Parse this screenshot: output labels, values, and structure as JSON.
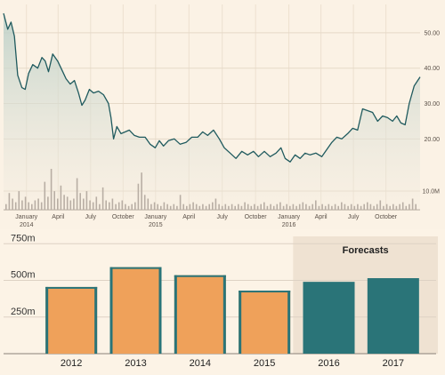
{
  "chart_data": [
    {
      "type": "line",
      "y_ticks": [
        "50.00",
        "40.00",
        "30.00",
        "20.00"
      ],
      "y_tick_values": [
        50,
        40,
        30,
        20
      ],
      "volume_tick": "10.0M",
      "ylim": [
        0,
        58
      ],
      "x_ticks": [
        {
          "label": "January",
          "year": "2014",
          "t": 0.055
        },
        {
          "label": "April",
          "year": "",
          "t": 0.131
        },
        {
          "label": "July",
          "year": "",
          "t": 0.209
        },
        {
          "label": "October",
          "year": "",
          "t": 0.287
        },
        {
          "label": "January",
          "year": "2015",
          "t": 0.365
        },
        {
          "label": "April",
          "year": "",
          "t": 0.445
        },
        {
          "label": "July",
          "year": "",
          "t": 0.525
        },
        {
          "label": "October",
          "year": "",
          "t": 0.605
        },
        {
          "label": "January",
          "year": "2016",
          "t": 0.685
        },
        {
          "label": "April",
          "year": "",
          "t": 0.762
        },
        {
          "label": "July",
          "year": "",
          "t": 0.84
        },
        {
          "label": "October",
          "year": "",
          "t": 0.918
        }
      ],
      "price": [
        {
          "t": 0.0,
          "v": 55.5
        },
        {
          "t": 0.01,
          "v": 51.0
        },
        {
          "t": 0.018,
          "v": 53.0
        },
        {
          "t": 0.026,
          "v": 49.0
        },
        {
          "t": 0.034,
          "v": 38.0
        },
        {
          "t": 0.044,
          "v": 34.5
        },
        {
          "t": 0.052,
          "v": 34.0
        },
        {
          "t": 0.06,
          "v": 38.5
        },
        {
          "t": 0.07,
          "v": 41.0
        },
        {
          "t": 0.082,
          "v": 40.0
        },
        {
          "t": 0.092,
          "v": 43.0
        },
        {
          "t": 0.1,
          "v": 42.0
        },
        {
          "t": 0.108,
          "v": 39.0
        },
        {
          "t": 0.118,
          "v": 44.0
        },
        {
          "t": 0.13,
          "v": 42.0
        },
        {
          "t": 0.142,
          "v": 39.0
        },
        {
          "t": 0.15,
          "v": 37.0
        },
        {
          "t": 0.16,
          "v": 35.5
        },
        {
          "t": 0.17,
          "v": 36.5
        },
        {
          "t": 0.18,
          "v": 33.0
        },
        {
          "t": 0.188,
          "v": 29.5
        },
        {
          "t": 0.196,
          "v": 31.0
        },
        {
          "t": 0.206,
          "v": 34.0
        },
        {
          "t": 0.216,
          "v": 33.0
        },
        {
          "t": 0.228,
          "v": 33.5
        },
        {
          "t": 0.24,
          "v": 32.5
        },
        {
          "t": 0.252,
          "v": 30.0
        },
        {
          "t": 0.258,
          "v": 26.0
        },
        {
          "t": 0.264,
          "v": 20.0
        },
        {
          "t": 0.272,
          "v": 23.5
        },
        {
          "t": 0.282,
          "v": 21.5
        },
        {
          "t": 0.292,
          "v": 22.0
        },
        {
          "t": 0.302,
          "v": 22.5
        },
        {
          "t": 0.314,
          "v": 21.0
        },
        {
          "t": 0.326,
          "v": 20.5
        },
        {
          "t": 0.34,
          "v": 20.5
        },
        {
          "t": 0.352,
          "v": 18.5
        },
        {
          "t": 0.364,
          "v": 17.5
        },
        {
          "t": 0.374,
          "v": 19.5
        },
        {
          "t": 0.384,
          "v": 18.0
        },
        {
          "t": 0.396,
          "v": 19.5
        },
        {
          "t": 0.41,
          "v": 20.0
        },
        {
          "t": 0.424,
          "v": 18.5
        },
        {
          "t": 0.438,
          "v": 19.0
        },
        {
          "t": 0.452,
          "v": 20.5
        },
        {
          "t": 0.466,
          "v": 20.5
        },
        {
          "t": 0.478,
          "v": 22.0
        },
        {
          "t": 0.49,
          "v": 21.0
        },
        {
          "t": 0.504,
          "v": 22.5
        },
        {
          "t": 0.518,
          "v": 20.0
        },
        {
          "t": 0.53,
          "v": 17.5
        },
        {
          "t": 0.544,
          "v": 16.0
        },
        {
          "t": 0.558,
          "v": 14.5
        },
        {
          "t": 0.572,
          "v": 16.5
        },
        {
          "t": 0.586,
          "v": 15.5
        },
        {
          "t": 0.6,
          "v": 16.5
        },
        {
          "t": 0.612,
          "v": 15.0
        },
        {
          "t": 0.626,
          "v": 16.5
        },
        {
          "t": 0.64,
          "v": 15.0
        },
        {
          "t": 0.654,
          "v": 16.0
        },
        {
          "t": 0.666,
          "v": 17.5
        },
        {
          "t": 0.676,
          "v": 14.5
        },
        {
          "t": 0.688,
          "v": 13.5
        },
        {
          "t": 0.7,
          "v": 15.5
        },
        {
          "t": 0.712,
          "v": 14.5
        },
        {
          "t": 0.724,
          "v": 16.0
        },
        {
          "t": 0.736,
          "v": 15.5
        },
        {
          "t": 0.75,
          "v": 16.0
        },
        {
          "t": 0.764,
          "v": 15.0
        },
        {
          "t": 0.776,
          "v": 17.0
        },
        {
          "t": 0.788,
          "v": 19.0
        },
        {
          "t": 0.8,
          "v": 20.5
        },
        {
          "t": 0.812,
          "v": 20.0
        },
        {
          "t": 0.826,
          "v": 21.5
        },
        {
          "t": 0.838,
          "v": 23.0
        },
        {
          "t": 0.85,
          "v": 22.5
        },
        {
          "t": 0.862,
          "v": 28.5
        },
        {
          "t": 0.874,
          "v": 28.0
        },
        {
          "t": 0.886,
          "v": 27.5
        },
        {
          "t": 0.898,
          "v": 25.0
        },
        {
          "t": 0.91,
          "v": 26.5
        },
        {
          "t": 0.922,
          "v": 26.0
        },
        {
          "t": 0.934,
          "v": 25.0
        },
        {
          "t": 0.944,
          "v": 26.5
        },
        {
          "t": 0.954,
          "v": 24.5
        },
        {
          "t": 0.964,
          "v": 24.0
        },
        {
          "t": 0.974,
          "v": 30.0
        },
        {
          "t": 0.986,
          "v": 35.0
        },
        {
          "t": 1.0,
          "v": 37.5
        }
      ],
      "volume": [
        3,
        9,
        6,
        4,
        10,
        5,
        7,
        4,
        3,
        5,
        6,
        4,
        15,
        7,
        22,
        10,
        6,
        13,
        8,
        7,
        5,
        6,
        17,
        9,
        6,
        10,
        5,
        4,
        7,
        3,
        12,
        5,
        4,
        6,
        3,
        4,
        5,
        3,
        2,
        3,
        4,
        14,
        20,
        8,
        6,
        3,
        4,
        3,
        2,
        4,
        3,
        2,
        3,
        2,
        8,
        3,
        2,
        3,
        4,
        3,
        2,
        3,
        2,
        3,
        4,
        6,
        3,
        2,
        3,
        2,
        3,
        2,
        3,
        2,
        4,
        3,
        2,
        3,
        2,
        3,
        4,
        2,
        3,
        2,
        3,
        4,
        2,
        3,
        2,
        3,
        2,
        3,
        4,
        3,
        2,
        3,
        5,
        2,
        3,
        2,
        3,
        2,
        3,
        2,
        4,
        3,
        2,
        3,
        2,
        3,
        2,
        3,
        4,
        3,
        2,
        3,
        5,
        2,
        3,
        2,
        3,
        2,
        3,
        4,
        2,
        3,
        6,
        3
      ],
      "volume_max": 22
    },
    {
      "type": "bar",
      "categories": [
        "2012",
        "2013",
        "2014",
        "2015",
        "2016",
        "2017"
      ],
      "values": [
        455,
        590,
        535,
        430,
        490,
        515
      ],
      "forecast": [
        false,
        false,
        false,
        false,
        true,
        true
      ],
      "forecast_label": "Forecasts",
      "y_ticks": [
        "750m",
        "500m",
        "250m"
      ],
      "y_tick_values": [
        750,
        500,
        250
      ],
      "ylim": [
        0,
        800
      ],
      "colors": {
        "actual": "#efa15a",
        "forecast": "#2a7478",
        "edge": "#2a7478",
        "shade": "#efe2d2"
      }
    }
  ]
}
